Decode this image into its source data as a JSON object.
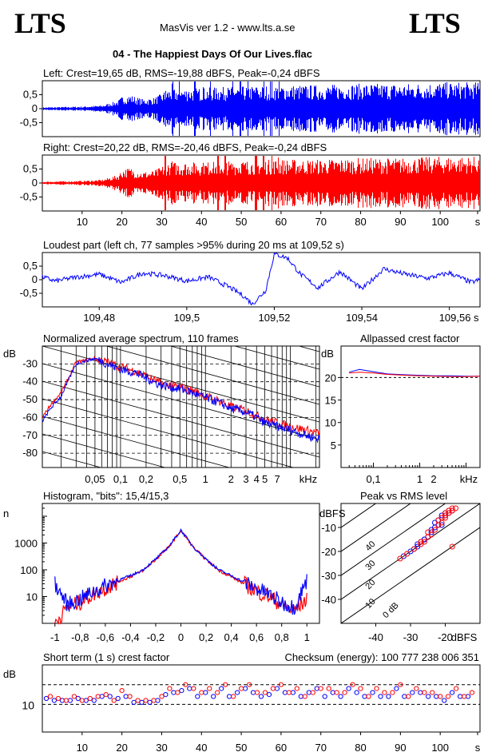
{
  "header": {
    "logo_left": "LTS",
    "logo_right": "LTS",
    "app_title": "MasVis ver 1.2 - www.lts.a.se",
    "file_title": "04 - The Happiest Days Of Our Lives.flac"
  },
  "colors": {
    "left": "#0000ff",
    "right": "#ff0000",
    "axis": "#000000"
  },
  "chart_data": [
    {
      "type": "line",
      "title": "Left: Crest=19,65 dB, RMS=-19,88 dBFS, Peak=-0,24 dBFS",
      "yticks": [
        "0,5",
        "0",
        "-0,5"
      ],
      "ylim": [
        -1,
        1
      ],
      "xlim": [
        0,
        110
      ],
      "series": [
        {
          "name": "left",
          "envelope": [
            [
              0,
              0.05
            ],
            [
              10,
              0.08
            ],
            [
              15,
              0.12
            ],
            [
              19,
              0.3
            ],
            [
              20,
              0.45
            ],
            [
              22,
              0.5
            ],
            [
              25,
              0.35
            ],
            [
              28,
              0.4
            ],
            [
              30,
              0.55
            ],
            [
              31,
              0.7
            ],
            [
              40,
              0.75
            ],
            [
              50,
              0.8
            ],
            [
              60,
              0.85
            ],
            [
              70,
              0.85
            ],
            [
              80,
              0.9
            ],
            [
              90,
              0.9
            ],
            [
              100,
              0.95
            ],
            [
              109,
              0.95
            ]
          ]
        }
      ]
    },
    {
      "type": "line",
      "title": "Right: Crest=20,22 dB, RMS=-20,46 dBFS, Peak=-0,24 dBFS",
      "yticks": [
        "0,5",
        "0",
        "-0,5"
      ],
      "ylim": [
        -1,
        1
      ],
      "xlim": [
        0,
        110
      ],
      "xticks": [
        "10",
        "20",
        "30",
        "40",
        "50",
        "60",
        "70",
        "80",
        "90",
        "100",
        "s"
      ],
      "series": [
        {
          "name": "right",
          "envelope": [
            [
              0,
              0.05
            ],
            [
              10,
              0.08
            ],
            [
              15,
              0.12
            ],
            [
              19,
              0.3
            ],
            [
              20,
              0.5
            ],
            [
              22,
              0.55
            ],
            [
              25,
              0.4
            ],
            [
              28,
              0.45
            ],
            [
              30,
              0.6
            ],
            [
              31,
              0.75
            ],
            [
              40,
              0.75
            ],
            [
              50,
              0.8
            ],
            [
              60,
              0.85
            ],
            [
              70,
              0.85
            ],
            [
              80,
              0.9
            ],
            [
              90,
              0.9
            ],
            [
              100,
              0.95
            ],
            [
              109,
              0.95
            ]
          ]
        }
      ]
    },
    {
      "type": "line",
      "title": "Loudest part (left  ch, 77 samples >95% during 20 ms at 109,52 s)",
      "yticks": [
        "0,5",
        "0",
        "-0,5"
      ],
      "xticks": [
        "109,48",
        "109,5",
        "109,52",
        "109,54",
        "109,56 s"
      ],
      "xlim": [
        109.467,
        109.567
      ],
      "ylim": [
        -1,
        1
      ],
      "series": [
        {
          "name": "left",
          "x": [
            109.467,
            109.47,
            109.475,
            109.48,
            109.485,
            109.49,
            109.495,
            109.5,
            109.505,
            109.51,
            109.513,
            109.515,
            109.518,
            109.52,
            109.523,
            109.526,
            109.53,
            109.535,
            109.54,
            109.545,
            109.55,
            109.555,
            109.56,
            109.565,
            109.567
          ],
          "y": [
            0.1,
            -0.05,
            0.1,
            0.2,
            -0.1,
            0.25,
            0.15,
            -0.05,
            0.1,
            -0.3,
            -0.6,
            -0.9,
            -0.4,
            0.95,
            0.8,
            0.2,
            -0.3,
            0.3,
            -0.35,
            0.4,
            0.2,
            0.05,
            0.25,
            -0.1,
            0
          ]
        }
      ]
    },
    {
      "type": "line",
      "title": "Normalized average spectrum, 110 frames",
      "ylabel": "dB",
      "yticks": [
        "-30",
        "-40",
        "-50",
        "-60",
        "-70",
        "-80"
      ],
      "xticks": [
        "0,05",
        "0,1",
        "0,2",
        "0,5",
        "1",
        "2",
        "3",
        "4",
        "5",
        "7",
        "kHz"
      ],
      "xlog": true,
      "xlim": [
        0.012,
        22
      ],
      "ylim": [
        -88,
        -20
      ],
      "series": [
        {
          "name": "left",
          "x": [
            0.012,
            0.015,
            0.02,
            0.025,
            0.03,
            0.04,
            0.05,
            0.07,
            0.1,
            0.15,
            0.2,
            0.3,
            0.5,
            0.7,
            1,
            1.5,
            2,
            3,
            4,
            5,
            7,
            10,
            15,
            22
          ],
          "y": [
            -62,
            -55,
            -48,
            -38,
            -30,
            -28,
            -27,
            -30,
            -33,
            -35,
            -38,
            -42,
            -44,
            -46,
            -49,
            -52,
            -55,
            -57,
            -60,
            -63,
            -65,
            -67,
            -70,
            -72
          ]
        },
        {
          "name": "right",
          "x": [
            0.012,
            0.015,
            0.02,
            0.025,
            0.03,
            0.04,
            0.05,
            0.07,
            0.1,
            0.15,
            0.2,
            0.3,
            0.5,
            0.7,
            1,
            1.5,
            2,
            3,
            4,
            5,
            7,
            10,
            15,
            22
          ],
          "y": [
            -60,
            -53,
            -46,
            -37,
            -29,
            -28,
            -27,
            -29,
            -32,
            -34,
            -37,
            -41,
            -43,
            -45,
            -48,
            -51,
            -54,
            -56,
            -59,
            -61,
            -63,
            -65,
            -67,
            -69
          ]
        }
      ]
    },
    {
      "type": "line",
      "title": "Allpassed crest factor",
      "ylabel": "dB",
      "yticks": [
        "20",
        "15",
        "10",
        "5"
      ],
      "xticks": [
        "0,1",
        "1",
        "2",
        "kHz"
      ],
      "xlog": true,
      "xlim": [
        0.02,
        20
      ],
      "ylim": [
        0,
        27
      ],
      "series": [
        {
          "name": "left",
          "x": [
            0.03,
            0.05,
            0.1,
            0.2,
            0.5,
            1,
            2,
            5,
            10,
            20
          ],
          "y": [
            21.2,
            21.8,
            21.3,
            20.8,
            20.6,
            20.5,
            20.4,
            20.4,
            20.3,
            20.3
          ]
        },
        {
          "name": "right",
          "x": [
            0.03,
            0.05,
            0.1,
            0.2,
            0.5,
            1,
            2,
            5,
            10,
            20
          ],
          "y": [
            21.0,
            21.2,
            21.0,
            20.7,
            20.5,
            20.4,
            20.3,
            20.2,
            20.2,
            20.3
          ]
        }
      ]
    },
    {
      "type": "line",
      "title": "Histogram, \"bits\": 15,4/15,3",
      "ylabel": "n",
      "yticks": [
        "1000",
        "100",
        "10"
      ],
      "ylog": true,
      "xticks": [
        "-1",
        "-0,8",
        "-0,6",
        "-0,4",
        "-0,2",
        "0",
        "0,2",
        "0,4",
        "0,6",
        "0,8",
        "1"
      ],
      "xlim": [
        -1.1,
        1.1
      ],
      "ylim": [
        1,
        30000
      ],
      "series": [
        {
          "name": "left",
          "x": [
            -1,
            -0.9,
            -0.8,
            -0.7,
            -0.6,
            -0.5,
            -0.4,
            -0.3,
            -0.2,
            -0.1,
            0,
            0.1,
            0.2,
            0.3,
            0.4,
            0.5,
            0.6,
            0.7,
            0.8,
            0.9,
            1
          ],
          "y": [
            30,
            5,
            8,
            15,
            25,
            40,
            60,
            100,
            250,
            700,
            3000,
            700,
            250,
            100,
            60,
            35,
            20,
            12,
            6,
            4,
            40
          ]
        },
        {
          "name": "right",
          "x": [
            -1,
            -0.9,
            -0.8,
            -0.7,
            -0.6,
            -0.5,
            -0.4,
            -0.3,
            -0.2,
            -0.1,
            0,
            0.1,
            0.2,
            0.3,
            0.4,
            0.5,
            0.6,
            0.7,
            0.8,
            0.9,
            1
          ],
          "y": [
            1,
            4,
            6,
            12,
            20,
            35,
            55,
            95,
            240,
            680,
            2900,
            680,
            240,
            95,
            55,
            30,
            16,
            10,
            5,
            3,
            8
          ]
        }
      ]
    },
    {
      "type": "scatter",
      "title": "Peak vs RMS level",
      "ylabel": "dBFS",
      "xlabel": "dBFS",
      "yticks": [
        "-10",
        "-20",
        "-30",
        "-40"
      ],
      "xticks": [
        "-40",
        "-30",
        "-20"
      ],
      "diagonal_labels": [
        "40",
        "30",
        "20",
        "10",
        "0 dB"
      ],
      "xlim": [
        -50,
        -10
      ],
      "ylim": [
        -50,
        0
      ],
      "series": [
        {
          "name": "left",
          "x": [
            -32,
            -30,
            -29,
            -28,
            -27,
            -26,
            -25,
            -24,
            -23,
            -22,
            -22,
            -21,
            -21,
            -20,
            -20,
            -19,
            -19,
            -18,
            -24,
            -26,
            -28,
            -23,
            -21
          ],
          "y": [
            -22,
            -20,
            -19,
            -18,
            -16,
            -15,
            -14,
            -12,
            -10,
            -9,
            -7,
            -6,
            -5,
            -5,
            -4,
            -4,
            -3,
            -3,
            -11,
            -15,
            -17,
            -8,
            -9
          ]
        },
        {
          "name": "right",
          "x": [
            -33,
            -31,
            -29,
            -27,
            -26,
            -25,
            -24,
            -23,
            -22,
            -21,
            -21,
            -20,
            -20,
            -19,
            -19,
            -18,
            -18,
            -17,
            -25,
            -27,
            -22,
            -20,
            -18
          ],
          "y": [
            -23,
            -21,
            -19,
            -17,
            -16,
            -14,
            -13,
            -11,
            -9,
            -8,
            -6,
            -5,
            -4,
            -4,
            -3,
            -3,
            -2,
            -2,
            -12,
            -16,
            -7,
            -6,
            -18
          ]
        }
      ]
    },
    {
      "type": "scatter",
      "title": "Short term (1 s) crest factor",
      "checksum": "Checksum (energy):   100 777 238 006 351",
      "ylabel": "dB",
      "yticks": [
        "10"
      ],
      "xticks": [
        "10",
        "20",
        "30",
        "40",
        "50",
        "60",
        "70",
        "80",
        "90",
        "100",
        "s"
      ],
      "xlim": [
        0,
        110
      ],
      "ylim": [
        3,
        20
      ],
      "series": [
        {
          "name": "left",
          "x": [
            1,
            3,
            5,
            7,
            9,
            11,
            13,
            15,
            17,
            19,
            21,
            23,
            25,
            27,
            29,
            31,
            33,
            35,
            37,
            39,
            41,
            43,
            45,
            47,
            49,
            51,
            53,
            55,
            57,
            59,
            61,
            63,
            65,
            67,
            69,
            71,
            73,
            75,
            77,
            79,
            81,
            83,
            85,
            87,
            89,
            91,
            93,
            95,
            97,
            99,
            101,
            103,
            105,
            107
          ],
          "y": [
            11.5,
            11,
            11,
            11,
            11.5,
            11,
            11,
            12,
            12,
            11.5,
            12,
            10.5,
            10.5,
            10.5,
            11,
            12.5,
            13,
            13.5,
            14,
            12,
            13,
            12,
            14,
            12,
            13,
            14,
            13,
            12,
            12.5,
            14,
            13,
            13,
            12,
            13,
            14,
            12,
            13,
            12,
            14,
            13,
            12,
            13,
            12,
            12,
            14,
            12,
            13,
            13,
            12,
            12,
            11,
            13,
            12,
            12
          ]
        },
        {
          "name": "right",
          "x": [
            2,
            4,
            6,
            8,
            10,
            12,
            14,
            16,
            18,
            20,
            22,
            24,
            26,
            28,
            30,
            32,
            34,
            36,
            38,
            40,
            42,
            44,
            46,
            48,
            50,
            52,
            54,
            56,
            58,
            60,
            62,
            64,
            66,
            68,
            70,
            72,
            74,
            76,
            78,
            80,
            82,
            84,
            86,
            88,
            90,
            92,
            94,
            96,
            98,
            100,
            102,
            104,
            106,
            108
          ],
          "y": [
            12,
            11.5,
            11,
            12,
            11,
            11.5,
            12,
            12.5,
            11,
            13.5,
            12,
            11,
            11,
            11,
            12,
            14,
            13,
            15,
            14,
            13,
            14,
            13,
            15,
            12,
            14,
            15,
            13,
            13,
            14,
            15,
            13,
            14,
            12,
            13,
            14,
            14,
            13,
            13,
            15,
            14,
            12,
            14,
            13,
            13,
            15,
            12,
            14,
            13,
            13,
            12,
            12,
            14,
            12,
            13
          ]
        }
      ]
    }
  ]
}
